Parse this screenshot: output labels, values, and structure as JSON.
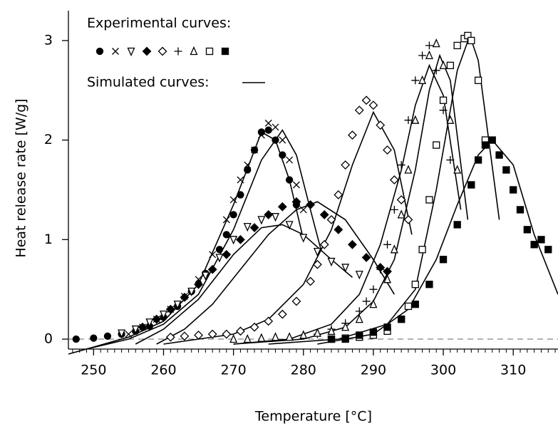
{
  "chart_data": {
    "type": "scatter",
    "xlabel": "Temperature  [°C]",
    "ylabel": "Heat release rate  [W/g]",
    "legend": {
      "experimental_label": "Experimental curves:",
      "simulated_label": "Simulated curves:"
    },
    "color": "#000000",
    "xlim": [
      246.4,
      316.4
    ],
    "ylim": [
      -0.1,
      3.3
    ],
    "xticks": [
      250,
      260,
      270,
      280,
      290,
      300,
      310
    ],
    "xminorticks": [
      247,
      248,
      249,
      251,
      252,
      253,
      254,
      255,
      256,
      257,
      258,
      259,
      261,
      262,
      263,
      264,
      265,
      266,
      267,
      268,
      269,
      271,
      272,
      273,
      274,
      275,
      276,
      277,
      278,
      279,
      281,
      282,
      283,
      284,
      285,
      286,
      287,
      288,
      289,
      291,
      292,
      293,
      294,
      295,
      296,
      297,
      298,
      299,
      301,
      302,
      303,
      304,
      305,
      306,
      307,
      308,
      309,
      311,
      312,
      313,
      314,
      315,
      316
    ],
    "yticks": [
      0,
      1,
      2,
      3
    ],
    "zero_line": "dashed",
    "series": [
      {
        "marker": "filled-circle",
        "x": [
          247.5,
          250,
          252,
          254,
          256,
          258,
          260,
          262,
          264,
          266,
          268,
          269,
          270,
          271,
          272,
          273,
          274,
          275,
          276,
          277,
          278,
          279
        ],
        "values": [
          0,
          0.01,
          0.03,
          0.05,
          0.08,
          0.13,
          0.22,
          0.33,
          0.48,
          0.66,
          0.9,
          1.05,
          1.25,
          1.45,
          1.7,
          1.9,
          2.08,
          2.1,
          2.0,
          1.85,
          1.6,
          1.35
        ]
      },
      {
        "marker": "cross",
        "x": [
          255,
          257,
          259,
          261,
          263,
          265,
          267,
          269,
          270,
          271,
          272,
          273,
          274,
          275,
          276,
          277,
          278,
          279,
          280
        ],
        "values": [
          0.05,
          0.12,
          0.2,
          0.3,
          0.43,
          0.6,
          0.85,
          1.2,
          1.4,
          1.6,
          1.75,
          1.9,
          2.05,
          2.17,
          2.13,
          2.0,
          1.8,
          1.55,
          1.3
        ]
      },
      {
        "marker": "open-down-triangle",
        "x": [
          254,
          256,
          258,
          260,
          262,
          264,
          266,
          268,
          270,
          272,
          274,
          276,
          278,
          280,
          282,
          284,
          286,
          288
        ],
        "values": [
          0.06,
          0.1,
          0.17,
          0.25,
          0.35,
          0.48,
          0.64,
          0.82,
          1.0,
          1.13,
          1.2,
          1.23,
          1.15,
          1.02,
          0.88,
          0.78,
          0.72,
          0.65
        ]
      },
      {
        "marker": "filled-diamond",
        "x": [
          257,
          259,
          261,
          263,
          265,
          267,
          269,
          271,
          273,
          275,
          277,
          279,
          281,
          283,
          285,
          287,
          289,
          291,
          292
        ],
        "values": [
          0.12,
          0.2,
          0.3,
          0.42,
          0.55,
          0.7,
          0.85,
          1.0,
          1.12,
          1.25,
          1.33,
          1.38,
          1.35,
          1.25,
          1.1,
          0.95,
          0.82,
          0.72,
          0.68
        ]
      },
      {
        "marker": "open-diamond",
        "x": [
          261,
          263,
          265,
          267,
          269,
          271,
          273,
          275,
          277,
          279,
          281,
          282,
          283,
          284,
          285,
          286,
          287,
          288,
          289,
          290,
          291,
          292,
          293,
          294,
          295
        ],
        "values": [
          0.02,
          0.03,
          0.04,
          0.05,
          0.05,
          0.08,
          0.12,
          0.18,
          0.25,
          0.38,
          0.58,
          0.75,
          0.95,
          1.2,
          1.45,
          1.75,
          2.05,
          2.3,
          2.4,
          2.35,
          2.15,
          1.9,
          1.6,
          1.4,
          1.2
        ]
      },
      {
        "marker": "plus",
        "x": [
          282,
          284,
          286,
          288,
          289,
          290,
          291,
          292,
          293,
          294,
          295,
          296,
          297,
          298,
          299,
          300,
          301
        ],
        "values": [
          0.05,
          0.1,
          0.16,
          0.28,
          0.38,
          0.5,
          0.7,
          0.95,
          1.3,
          1.75,
          2.2,
          2.6,
          2.85,
          2.95,
          2.7,
          2.3,
          1.8
        ]
      },
      {
        "marker": "open-up-triangle",
        "x": [
          270,
          272,
          274,
          276,
          278,
          280,
          282,
          284,
          286,
          288,
          290,
          292,
          293,
          294,
          295,
          296,
          297,
          298,
          299,
          300,
          301,
          302
        ],
        "values": [
          0.0,
          0.0,
          0.01,
          0.02,
          0.02,
          0.04,
          0.06,
          0.08,
          0.12,
          0.2,
          0.35,
          0.6,
          0.9,
          1.25,
          1.7,
          2.2,
          2.6,
          2.85,
          2.97,
          2.75,
          2.2,
          1.7
        ]
      },
      {
        "marker": "open-square",
        "x": [
          284,
          286,
          288,
          290,
          292,
          294,
          295,
          296,
          297,
          298,
          299,
          300,
          301,
          302,
          303,
          303.5,
          304,
          305,
          306
        ],
        "values": [
          0.0,
          0.01,
          0.02,
          0.04,
          0.08,
          0.2,
          0.33,
          0.55,
          0.9,
          1.4,
          1.95,
          2.4,
          2.75,
          2.95,
          3.02,
          3.05,
          3.0,
          2.6,
          2.0
        ]
      },
      {
        "marker": "filled-square",
        "x": [
          284,
          286,
          288,
          290,
          292,
          294,
          296,
          298,
          300,
          302,
          304,
          305,
          306,
          307,
          308,
          309,
          310,
          311,
          312,
          313,
          314,
          315
        ],
        "values": [
          0.0,
          0.0,
          0.04,
          0.07,
          0.12,
          0.2,
          0.35,
          0.55,
          0.8,
          1.15,
          1.55,
          1.8,
          1.95,
          2.0,
          1.85,
          1.7,
          1.5,
          1.3,
          1.1,
          0.95,
          1.0,
          0.9
        ]
      }
    ],
    "simulated": [
      {
        "x": [
          246.4,
          250,
          255,
          260,
          265,
          270,
          274,
          276,
          278,
          280
        ],
        "values": [
          -0.15,
          -0.08,
          0.02,
          0.18,
          0.55,
          1.35,
          2.08,
          2.0,
          1.6,
          1.0
        ]
      },
      {
        "x": [
          249,
          255,
          260,
          265,
          270,
          274,
          277,
          279,
          281,
          282.5
        ],
        "values": [
          -0.1,
          0.0,
          0.15,
          0.45,
          1.1,
          1.8,
          2.1,
          1.85,
          1.3,
          0.9
        ]
      },
      {
        "x": [
          256,
          260,
          265,
          270,
          274,
          277,
          280,
          284,
          287
        ],
        "values": [
          -0.05,
          0.1,
          0.4,
          0.85,
          1.12,
          1.15,
          1.05,
          0.8,
          0.62
        ]
      },
      {
        "x": [
          259,
          263,
          267,
          271,
          275,
          279,
          282,
          286,
          290,
          293
        ],
        "values": [
          -0.05,
          0.1,
          0.35,
          0.7,
          1.05,
          1.3,
          1.38,
          1.2,
          0.8,
          0.45
        ]
      },
      {
        "x": [
          260,
          265,
          270,
          275,
          280,
          284,
          287,
          290,
          293,
          295.5
        ],
        "values": [
          -0.05,
          0.0,
          0.05,
          0.2,
          0.55,
          1.1,
          1.75,
          2.28,
          1.9,
          1.05
        ]
      },
      {
        "x": [
          270,
          278,
          284,
          288,
          291,
          294,
          296,
          298,
          300,
          302.5
        ],
        "values": [
          -0.05,
          0.0,
          0.15,
          0.45,
          0.95,
          1.7,
          2.35,
          2.75,
          2.45,
          1.3
        ]
      },
      {
        "x": [
          270,
          280,
          286,
          290,
          293,
          296,
          298,
          299.5,
          301,
          303.5
        ],
        "values": [
          -0.05,
          0.0,
          0.12,
          0.38,
          0.8,
          1.7,
          2.5,
          2.85,
          2.6,
          1.2
        ]
      },
      {
        "x": [
          275,
          285,
          292,
          296,
          299,
          302,
          303.8,
          305,
          306.5,
          308
        ],
        "values": [
          -0.05,
          0.0,
          0.15,
          0.5,
          1.5,
          2.7,
          3.05,
          2.8,
          2.0,
          1.2
        ]
      },
      {
        "x": [
          282,
          290,
          295,
          299,
          302,
          305,
          307,
          310,
          313,
          316.4
        ],
        "values": [
          -0.05,
          0.05,
          0.3,
          0.8,
          1.35,
          1.85,
          2.0,
          1.75,
          1.05,
          0.45
        ]
      }
    ]
  }
}
